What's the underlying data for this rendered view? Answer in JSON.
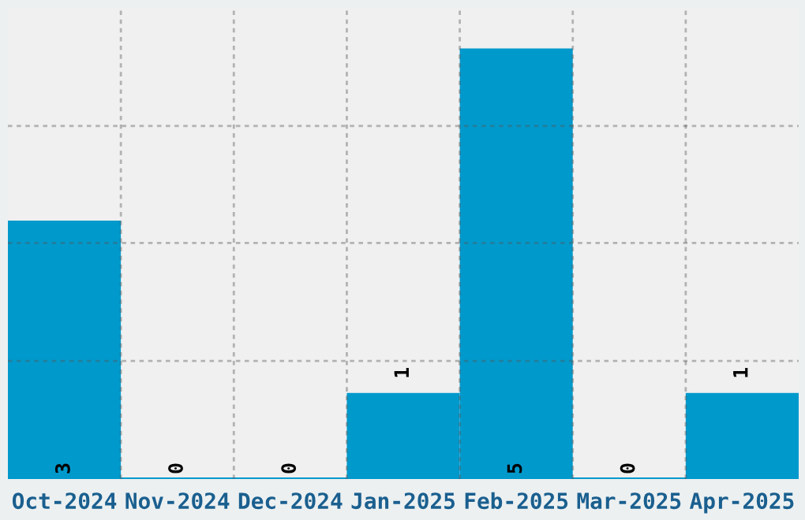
{
  "chart_data": {
    "type": "bar",
    "categories": [
      "Oct-2024",
      "Nov-2024",
      "Dec-2024",
      "Jan-2025",
      "Feb-2025",
      "Mar-2025",
      "Apr-2025"
    ],
    "values": [
      3,
      0,
      0,
      1,
      5,
      0,
      1
    ],
    "color": "#0099cc",
    "ylim": [
      0,
      5.47
    ],
    "yticks": [
      {
        "value": 1.37,
        "label": null
      },
      {
        "value": 2.74,
        "label": null
      },
      {
        "value": 4.1,
        "label": null
      }
    ],
    "tick_labels": "x",
    "data_labels": true,
    "grid": true
  }
}
